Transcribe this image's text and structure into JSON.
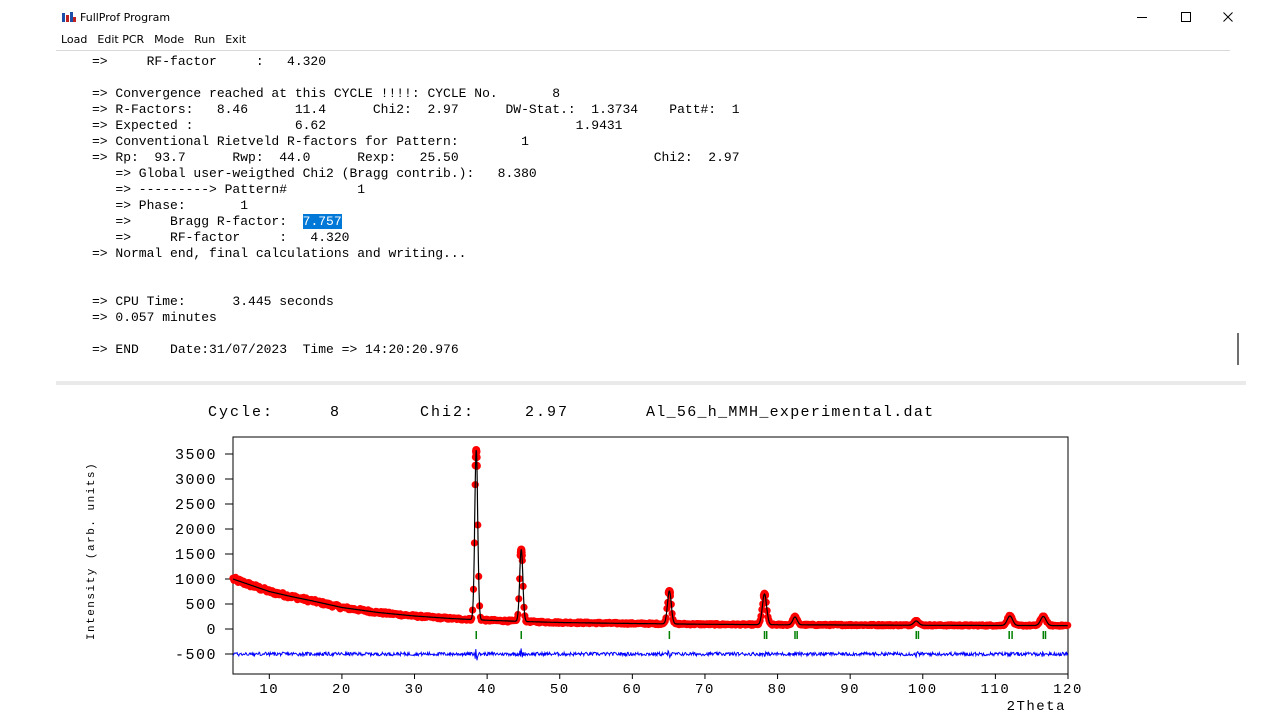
{
  "window": {
    "title": "FullProf Program",
    "icon": "fullprof-app-icon",
    "controls": [
      "minimize-icon",
      "maximize-icon",
      "close-icon"
    ]
  },
  "menu": [
    "Load",
    "Edit PCR",
    "Mode",
    "Run",
    "Exit"
  ],
  "console": {
    "lines": [
      "=>     RF-factor     :   4.320",
      "",
      "=> Convergence reached at this CYCLE !!!!: CYCLE No.       8",
      "=> R-Factors:   8.46      11.4      Chi2:  2.97      DW-Stat.:  1.3734    Patt#:  1",
      "=> Expected :             6.62                                1.9431",
      "=> Conventional Rietveld R-factors for Pattern:        1",
      "=> Rp:  93.7      Rwp:  44.0      Rexp:   25.50                         Chi2:  2.97",
      "   => Global user-weigthed Chi2 (Bragg contrib.):   8.380",
      "   => ---------> Pattern#         1",
      "   => Phase:       1",
      "   =>     Bragg R-factor:  ",
      "   =>     RF-factor     :   4.320",
      "=> Normal end, final calculations and writing...",
      "",
      "",
      "=> CPU Time:      3.445 seconds",
      "=> 0.057 minutes",
      "",
      "=> END    Date:31/07/2023  Time => 14:20:20.976"
    ],
    "selected_text": "7.757",
    "selected_line_index": 10
  },
  "plot": {
    "header": {
      "cycle_label": "Cycle:",
      "cycle_value": "8",
      "chi2_label": "Chi2:",
      "chi2_value": "2.97",
      "filename": "Al_56_h_MMH_experimental.dat"
    },
    "colors": {
      "observed": "#ff0000",
      "calculated": "#000000",
      "difference": "#0000ff",
      "bragg": "#008000"
    },
    "chart_data": {
      "type": "scatter",
      "xlabel": "2Theta",
      "ylabel": "Intensity (arb. units)",
      "xlim": [
        5,
        120
      ],
      "ylim": [
        -700,
        3800
      ],
      "x_ticks": [
        10,
        20,
        30,
        40,
        50,
        60,
        70,
        80,
        90,
        100,
        110,
        120
      ],
      "y_ticks": [
        3500,
        3000,
        2500,
        2000,
        1500,
        1000,
        500,
        0,
        -500
      ],
      "background": {
        "x": [
          5,
          8,
          10,
          13,
          16,
          20,
          25,
          30,
          35,
          40,
          45,
          50,
          55,
          60,
          70,
          80,
          90,
          100,
          110,
          120
        ],
        "y": [
          1000,
          850,
          750,
          650,
          560,
          430,
          330,
          260,
          210,
          175,
          150,
          130,
          120,
          110,
          95,
          85,
          80,
          75,
          70,
          68
        ]
      },
      "peaks": [
        {
          "x": 38.5,
          "intensity": 3580
        },
        {
          "x": 44.7,
          "intensity": 1590
        },
        {
          "x": 65.1,
          "intensity": 760
        },
        {
          "x": 78.2,
          "intensity": 700
        },
        {
          "x": 82.4,
          "intensity": 240
        },
        {
          "x": 99.1,
          "intensity": 160
        },
        {
          "x": 112.0,
          "intensity": 260
        },
        {
          "x": 116.6,
          "intensity": 250
        }
      ],
      "bragg_positions": [
        38.5,
        44.7,
        65.1,
        78.2,
        78.5,
        82.4,
        82.7,
        99.1,
        99.4,
        111.9,
        112.3,
        116.6,
        116.9
      ],
      "difference_offset": -500
    }
  }
}
